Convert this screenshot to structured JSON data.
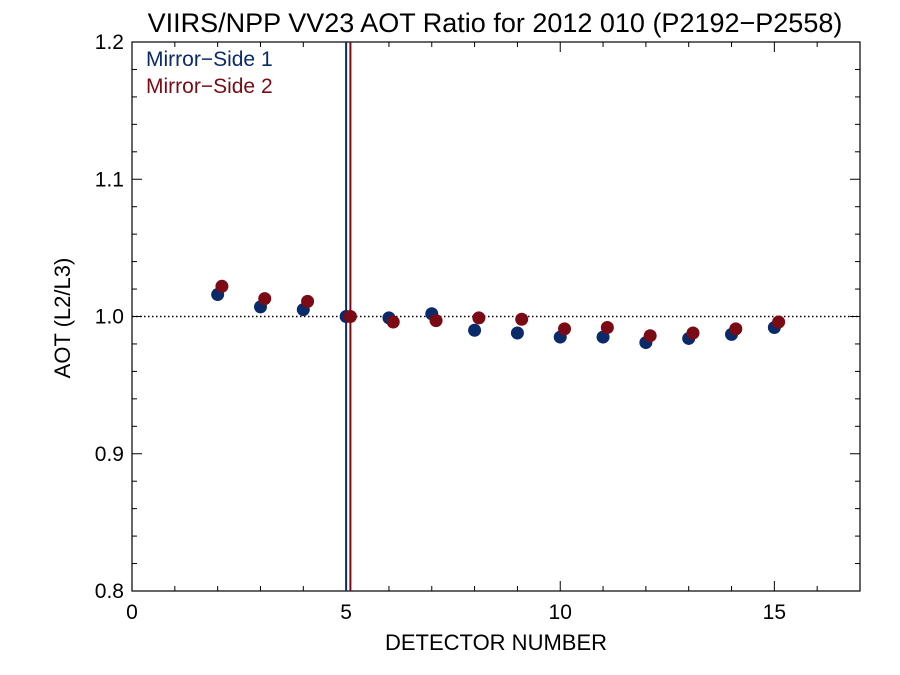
{
  "chart_data": {
    "type": "scatter",
    "title": "VIIRS/NPP VV23 AOT Ratio for 2012 010 (P2192−P2558)",
    "xlabel": "DETECTOR NUMBER",
    "ylabel": "AOT (L2/L3)",
    "xlim": [
      0,
      17
    ],
    "ylim": [
      0.8,
      1.2
    ],
    "x_ticks": [
      0,
      5,
      10,
      15
    ],
    "y_ticks": [
      0.8,
      0.9,
      1.0,
      1.1,
      1.2
    ],
    "x_tick_labels": [
      "0",
      "5",
      "10",
      "15"
    ],
    "y_tick_labels": [
      "0.8",
      "0.9",
      "1.0",
      "1.1",
      "1.2"
    ],
    "reference_line_y": 1.0,
    "vertical_lines": [
      {
        "x": 5.0,
        "color": "#0a2a6a"
      },
      {
        "x": 5.1,
        "color": "#7a0a14"
      }
    ],
    "legend_position": "top-left",
    "grid": false,
    "series": [
      {
        "name": "Mirror−Side 1",
        "color": "#0a2a6a",
        "x": [
          2,
          3,
          4,
          5,
          6,
          7,
          8,
          9,
          10,
          11,
          12,
          13,
          14,
          15
        ],
        "y": [
          1.016,
          1.007,
          1.005,
          1.0,
          0.999,
          1.002,
          0.99,
          0.988,
          0.985,
          0.985,
          0.981,
          0.984,
          0.987,
          0.992
        ]
      },
      {
        "name": "Mirror−Side 2",
        "color": "#7a0a14",
        "x": [
          2.1,
          3.1,
          4.1,
          5.1,
          6.1,
          7.1,
          8.1,
          9.1,
          10.1,
          11.1,
          12.1,
          13.1,
          14.1,
          15.1
        ],
        "y": [
          1.022,
          1.013,
          1.011,
          1.0,
          0.996,
          0.997,
          0.999,
          0.998,
          0.991,
          0.992,
          0.986,
          0.988,
          0.991,
          0.996
        ]
      }
    ]
  }
}
